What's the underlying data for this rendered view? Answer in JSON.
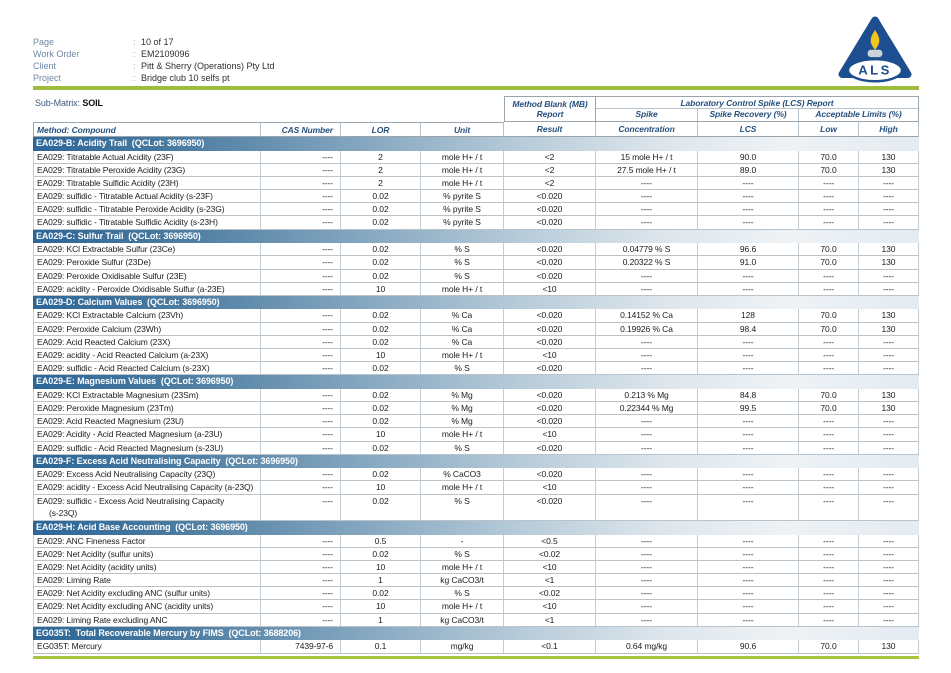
{
  "meta": {
    "separator": ":",
    "rows": [
      {
        "label": "Page",
        "value": "10 of 17"
      },
      {
        "label": "Work Order",
        "value": "EM2109096"
      },
      {
        "label": "Client",
        "value": "Pitt & Sherry (Operations) Pty Ltd"
      },
      {
        "label": "Project",
        "value": "Bridge club 10 selfs pt"
      }
    ]
  },
  "logo": {
    "text": "ALS"
  },
  "submatrix": {
    "label": "Sub-Matrix:",
    "value": "SOIL"
  },
  "colors": {
    "accent_green": "#9fbc3d",
    "brand_blue": "#1d4e8f",
    "header_text": "#27517e",
    "section_bar_start": "#2c6697"
  },
  "table": {
    "group_headers": {
      "mb_line1": "Method Blank (MB)",
      "mb_line2": "Report",
      "lcs_title": "Laboratory Control Spike (LCS) Report",
      "spike": "Spike",
      "spike_recovery": "Spike Recovery (%)",
      "acceptable_limits": "Acceptable Limits (%)"
    },
    "columns": [
      "Method: Compound",
      "CAS Number",
      "LOR",
      "Unit",
      "Result",
      "Concentration",
      "LCS",
      "Low",
      "High"
    ],
    "sections": [
      {
        "title": "EA029-B: Acidity Trail  (QCLot: 3696950)",
        "rows": [
          [
            "EA029: Titratable Actual Acidity (23F)",
            "----",
            "2",
            "mole H+ / t",
            "<2",
            "15 mole H+ / t",
            "90.0",
            "70.0",
            "130"
          ],
          [
            "EA029: Titratable Peroxide Acidity (23G)",
            "----",
            "2",
            "mole H+ / t",
            "<2",
            "27.5 mole H+ / t",
            "89.0",
            "70.0",
            "130"
          ],
          [
            "EA029: Titratable Sulfidic Acidity (23H)",
            "----",
            "2",
            "mole H+ / t",
            "<2",
            "----",
            "----",
            "----",
            "----"
          ],
          [
            "EA029: sulfidic - Titratable Actual Acidity (s-23F)",
            "----",
            "0.02",
            "% pyrite S",
            "<0.020",
            "----",
            "----",
            "----",
            "----"
          ],
          [
            "EA029: sulfidic - Titratable Peroxide Acidity (s-23G)",
            "----",
            "0.02",
            "% pyrite S",
            "<0.020",
            "----",
            "----",
            "----",
            "----"
          ],
          [
            "EA029: sulfidic - Titratable Sulfidic Acidity (s-23H)",
            "----",
            "0.02",
            "% pyrite S",
            "<0.020",
            "----",
            "----",
            "----",
            "----"
          ]
        ]
      },
      {
        "title": "EA029-C: Sulfur Trail  (QCLot: 3696950)",
        "rows": [
          [
            "EA029: KCl Extractable Sulfur (23Ce)",
            "----",
            "0.02",
            "% S",
            "<0.020",
            "0.04779 % S",
            "96.6",
            "70.0",
            "130"
          ],
          [
            "EA029: Peroxide Sulfur (23De)",
            "----",
            "0.02",
            "% S",
            "<0.020",
            "0.20322 % S",
            "91.0",
            "70.0",
            "130"
          ],
          [
            "EA029: Peroxide Oxidisable Sulfur (23E)",
            "----",
            "0.02",
            "% S",
            "<0.020",
            "----",
            "----",
            "----",
            "----"
          ],
          [
            "EA029: acidity - Peroxide Oxidisable Sulfur (a-23E)",
            "----",
            "10",
            "mole H+ / t",
            "<10",
            "----",
            "----",
            "----",
            "----"
          ]
        ]
      },
      {
        "title": "EA029-D: Calcium Values  (QCLot: 3696950)",
        "rows": [
          [
            "EA029: KCl Extractable Calcium (23Vh)",
            "----",
            "0.02",
            "% Ca",
            "<0.020",
            "0.14152 % Ca",
            "128",
            "70.0",
            "130"
          ],
          [
            "EA029: Peroxide Calcium (23Wh)",
            "----",
            "0.02",
            "% Ca",
            "<0.020",
            "0.19926 % Ca",
            "98.4",
            "70.0",
            "130"
          ],
          [
            "EA029: Acid Reacted Calcium (23X)",
            "----",
            "0.02",
            "% Ca",
            "<0.020",
            "----",
            "----",
            "----",
            "----"
          ],
          [
            "EA029: acidity - Acid Reacted Calcium (a-23X)",
            "----",
            "10",
            "mole H+ / t",
            "<10",
            "----",
            "----",
            "----",
            "----"
          ],
          [
            "EA029: sulfidic - Acid Reacted Calcium (s-23X)",
            "----",
            "0.02",
            "% S",
            "<0.020",
            "----",
            "----",
            "----",
            "----"
          ]
        ]
      },
      {
        "title": "EA029-E: Magnesium Values  (QCLot: 3696950)",
        "rows": [
          [
            "EA029: KCl Extractable Magnesium (23Sm)",
            "----",
            "0.02",
            "% Mg",
            "<0.020",
            "0.213 % Mg",
            "84.8",
            "70.0",
            "130"
          ],
          [
            "EA029: Peroxide Magnesium (23Tm)",
            "----",
            "0.02",
            "% Mg",
            "<0.020",
            "0.22344 % Mg",
            "99.5",
            "70.0",
            "130"
          ],
          [
            "EA029: Acid Reacted Magnesium (23U)",
            "----",
            "0.02",
            "% Mg",
            "<0.020",
            "----",
            "----",
            "----",
            "----"
          ],
          [
            "EA029: Acidity - Acid Reacted Magnesium (a-23U)",
            "----",
            "10",
            "mole H+ / t",
            "<10",
            "----",
            "----",
            "----",
            "----"
          ],
          [
            "EA029: sulfidic - Acid Reacted Magnesium (s-23U)",
            "----",
            "0.02",
            "% S",
            "<0.020",
            "----",
            "----",
            "----",
            "----"
          ]
        ]
      },
      {
        "title": "EA029-F: Excess Acid Neutralising Capacity  (QCLot: 3696950)",
        "rows": [
          [
            "EA029: Excess Acid Neutralising Capacity (23Q)",
            "----",
            "0.02",
            "% CaCO3",
            "<0.020",
            "----",
            "----",
            "----",
            "----"
          ],
          [
            "EA029: acidity - Excess Acid Neutralising Capacity (a-23Q)",
            "----",
            "10",
            "mole H+ / t",
            "<10",
            "----",
            "----",
            "----",
            "----"
          ],
          [
            "EA029: sulfidic - Excess Acid Neutralising Capacity\n(s-23Q)",
            "----",
            "0.02",
            "% S",
            "<0.020",
            "----",
            "----",
            "----",
            "----"
          ]
        ]
      },
      {
        "title": "EA029-H: Acid Base Accounting  (QCLot: 3696950)",
        "rows": [
          [
            "EA029: ANC Fineness Factor",
            "----",
            "0.5",
            "-",
            "<0.5",
            "----",
            "----",
            "----",
            "----"
          ],
          [
            "EA029: Net Acidity (sulfur units)",
            "----",
            "0.02",
            "% S",
            "<0.02",
            "----",
            "----",
            "----",
            "----"
          ],
          [
            "EA029: Net Acidity (acidity units)",
            "----",
            "10",
            "mole H+ / t",
            "<10",
            "----",
            "----",
            "----",
            "----"
          ],
          [
            "EA029: Liming Rate",
            "----",
            "1",
            "kg CaCO3/t",
            "<1",
            "----",
            "----",
            "----",
            "----"
          ],
          [
            "EA029: Net Acidity excluding ANC (sulfur units)",
            "----",
            "0.02",
            "% S",
            "<0.02",
            "----",
            "----",
            "----",
            "----"
          ],
          [
            "EA029: Net Acidity excluding ANC (acidity units)",
            "----",
            "10",
            "mole H+ / t",
            "<10",
            "----",
            "----",
            "----",
            "----"
          ],
          [
            "EA029: Liming Rate excluding ANC",
            "----",
            "1",
            "kg CaCO3/t",
            "<1",
            "----",
            "----",
            "----",
            "----"
          ]
        ]
      },
      {
        "title": "EG035T:  Total Recoverable Mercury by FIMS  (QCLot: 3688206)",
        "rows": [
          [
            "EG035T: Mercury",
            "7439-97-6",
            "0.1",
            "mg/kg",
            "<0.1",
            "0.64 mg/kg",
            "90.6",
            "70.0",
            "130"
          ]
        ]
      }
    ]
  }
}
